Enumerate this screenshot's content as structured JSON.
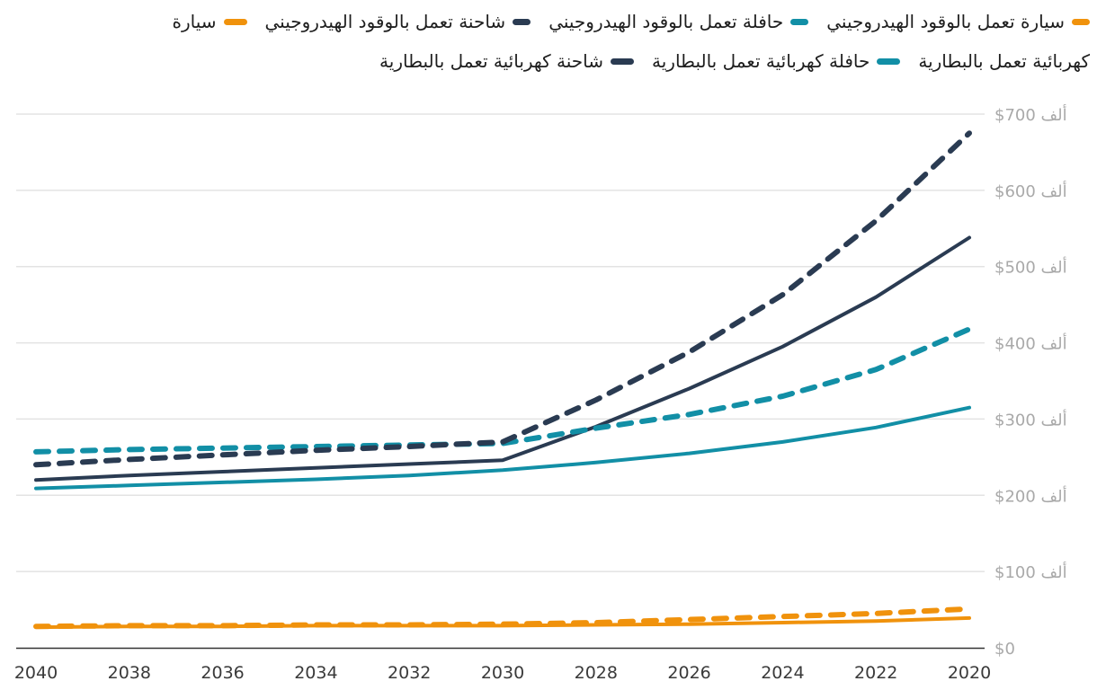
{
  "chart_data": {
    "type": "line",
    "title": "",
    "xlabel": "",
    "ylabel": "",
    "x": [
      2040,
      2038,
      2036,
      2034,
      2032,
      2030,
      2028,
      2026,
      2024,
      2022,
      2020
    ],
    "x_tick_labels": [
      "2040",
      "2038",
      "2036",
      "2034",
      "2032",
      "2030",
      "2028",
      "2026",
      "2024",
      "2022",
      "2020"
    ],
    "ylim": [
      0,
      700
    ],
    "y_ticks": [
      0,
      100,
      200,
      300,
      400,
      500,
      600,
      700
    ],
    "y_tick_labels": [
      "$0",
      "$100 ألف",
      "$200 ألف",
      "$300 ألف",
      "$400 ألف",
      "$500 ألف",
      "$600 ألف",
      "$700 ألف"
    ],
    "grid": true,
    "legend_position": "top-right",
    "series": [
      {
        "name": "سيارة تعمل بالوقود الهيدروجيني",
        "color": "#f0920c",
        "dashed": true,
        "values": [
          28,
          29,
          29,
          30,
          30,
          31,
          33,
          37,
          41,
          45,
          51
        ]
      },
      {
        "name": "حافلة تعمل بالوقود الهيدروجيني",
        "color": "#128fa6",
        "dashed": true,
        "values": [
          257,
          260,
          262,
          264,
          266,
          268,
          288,
          306,
          330,
          365,
          418
        ]
      },
      {
        "name": "شاحنة تعمل بالوقود الهيدروجيني",
        "color": "#2a3b52",
        "dashed": true,
        "values": [
          240,
          247,
          253,
          259,
          264,
          270,
          325,
          388,
          463,
          560,
          675
        ]
      },
      {
        "name": "سيارة كهربائية تعمل بالبطارية",
        "color": "#f0920c",
        "dashed": false,
        "values": [
          27,
          28,
          28,
          29,
          29,
          29,
          30,
          31,
          33,
          35,
          39
        ]
      },
      {
        "name": "حافلة كهربائية تعمل بالبطارية",
        "color": "#128fa6",
        "dashed": false,
        "values": [
          209,
          213,
          217,
          221,
          226,
          233,
          243,
          255,
          270,
          289,
          315
        ]
      },
      {
        "name": "شاحنة كهربائية تعمل بالبطارية",
        "color": "#2a3b52",
        "dashed": false,
        "values": [
          220,
          226,
          231,
          236,
          241,
          246,
          290,
          340,
          395,
          460,
          538
        ]
      }
    ]
  },
  "legend": {
    "row1": [
      {
        "label": "سيارة تعمل بالوقود الهيدروجيني",
        "color": "#f0920c",
        "style": "dash"
      },
      {
        "label": "حافلة تعمل بالوقود الهيدروجيني",
        "color": "#128fa6",
        "style": "dash"
      },
      {
        "label": "شاحنة تعمل بالوقود الهيدروجيني",
        "color": "#2a3b52",
        "style": "dash"
      },
      {
        "label": "سيارة",
        "color": "#f0920c",
        "style": "solid"
      }
    ],
    "row2": [
      {
        "label": "كهربائية تعمل بالبطارية",
        "color": "#128fa6",
        "style": "solid"
      },
      {
        "label": "حافلة كهربائية تعمل بالبطارية",
        "color": "#2a3b52",
        "style": "solid"
      },
      {
        "label": "شاحنة كهربائية تعمل بالبطارية",
        "color": "",
        "style": "none"
      }
    ]
  }
}
